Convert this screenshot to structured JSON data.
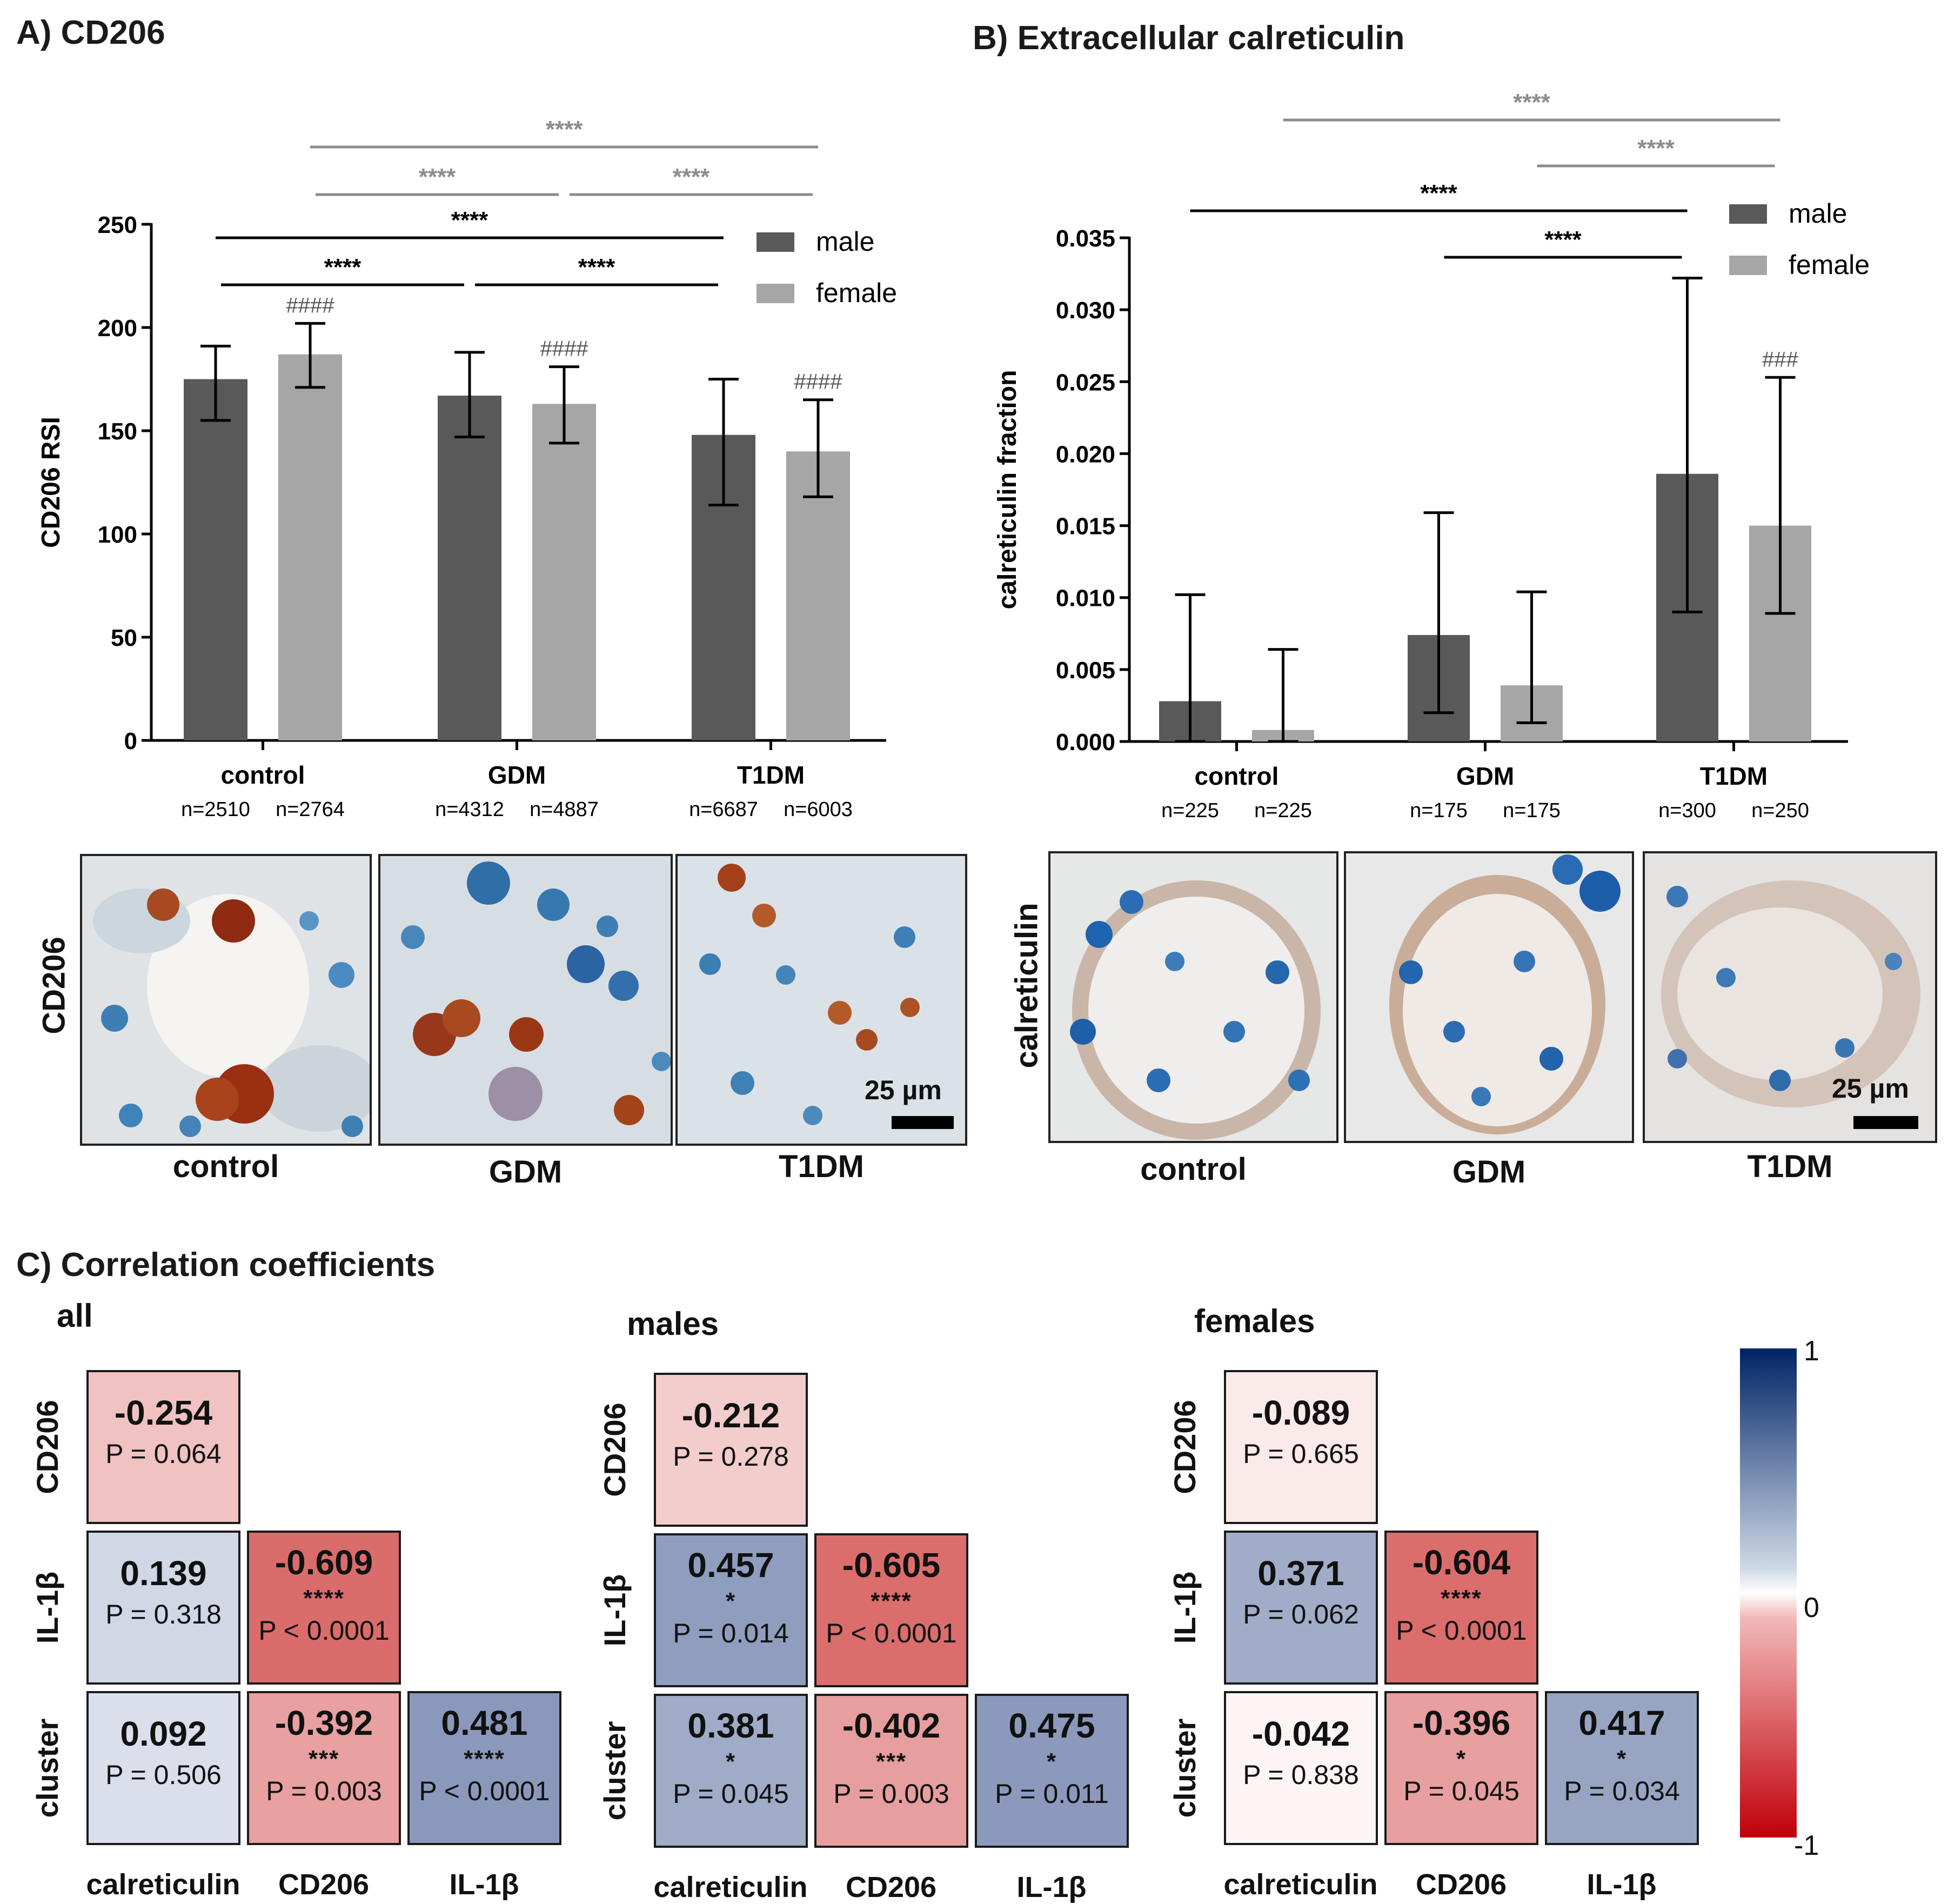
{
  "panel_a": {
    "title": "A) CD206",
    "images": [
      {
        "label": "control"
      },
      {
        "label": "GDM"
      },
      {
        "label": "T1DM"
      }
    ],
    "side_label": "CD206",
    "scale_label": "25 µm"
  },
  "panel_b": {
    "title": "B) Extracellular calreticulin",
    "images": [
      {
        "label": "control"
      },
      {
        "label": "GDM"
      },
      {
        "label": "T1DM"
      }
    ],
    "side_label": "calreticulin",
    "scale_label": "25 µm"
  },
  "panel_c": {
    "title": "C) Correlation coefficients",
    "groups": [
      {
        "subtitle": "all",
        "row_labels": [
          "CD206",
          "IL-1β",
          "cluster"
        ],
        "col_labels": [
          "calreticulin",
          "CD206",
          "IL-1β"
        ],
        "cells": [
          {
            "row": 0,
            "col": 0,
            "r": "-0.254",
            "stars": "",
            "p": "P = 0.064",
            "value": -0.254
          },
          {
            "row": 1,
            "col": 0,
            "r": "0.139",
            "stars": "",
            "p": "P = 0.318",
            "value": 0.139
          },
          {
            "row": 1,
            "col": 1,
            "r": "-0.609",
            "stars": "****",
            "p": "P < 0.0001",
            "value": -0.609
          },
          {
            "row": 2,
            "col": 0,
            "r": "0.092",
            "stars": "",
            "p": "P = 0.506",
            "value": 0.092
          },
          {
            "row": 2,
            "col": 1,
            "r": "-0.392",
            "stars": "***",
            "p": "P = 0.003",
            "value": -0.392
          },
          {
            "row": 2,
            "col": 2,
            "r": "0.481",
            "stars": "****",
            "p": "P < 0.0001",
            "value": 0.481
          }
        ]
      },
      {
        "subtitle": "males",
        "row_labels": [
          "CD206",
          "IL-1β",
          "cluster"
        ],
        "col_labels": [
          "calreticulin",
          "CD206",
          "IL-1β"
        ],
        "cells": [
          {
            "row": 0,
            "col": 0,
            "r": "-0.212",
            "stars": "",
            "p": "P = 0.278",
            "value": -0.212
          },
          {
            "row": 1,
            "col": 0,
            "r": "0.457",
            "stars": "*",
            "p": "P = 0.014",
            "value": 0.457
          },
          {
            "row": 1,
            "col": 1,
            "r": "-0.605",
            "stars": "****",
            "p": "P < 0.0001",
            "value": -0.605
          },
          {
            "row": 2,
            "col": 0,
            "r": "0.381",
            "stars": "*",
            "p": "P = 0.045",
            "value": 0.381
          },
          {
            "row": 2,
            "col": 1,
            "r": "-0.402",
            "stars": "***",
            "p": "P = 0.003",
            "value": -0.402
          },
          {
            "row": 2,
            "col": 2,
            "r": "0.475",
            "stars": "*",
            "p": "P = 0.011",
            "value": 0.475
          }
        ]
      },
      {
        "subtitle": "females",
        "row_labels": [
          "CD206",
          "IL-1β",
          "cluster"
        ],
        "col_labels": [
          "calreticulin",
          "CD206",
          "IL-1β"
        ],
        "cells": [
          {
            "row": 0,
            "col": 0,
            "r": "-0.089",
            "stars": "",
            "p": "P = 0.665",
            "value": -0.089
          },
          {
            "row": 1,
            "col": 0,
            "r": "0.371",
            "stars": "",
            "p": "P = 0.062",
            "value": 0.371
          },
          {
            "row": 1,
            "col": 1,
            "r": "-0.604",
            "stars": "****",
            "p": "P < 0.0001",
            "value": -0.604
          },
          {
            "row": 2,
            "col": 0,
            "r": "-0.042",
            "stars": "",
            "p": "P = 0.838",
            "value": -0.042
          },
          {
            "row": 2,
            "col": 1,
            "r": "-0.396",
            "stars": "*",
            "p": "P = 0.045",
            "value": -0.396
          },
          {
            "row": 2,
            "col": 2,
            "r": "0.417",
            "stars": "*",
            "p": "P = 0.034",
            "value": 0.417
          }
        ]
      }
    ],
    "colorbar": {
      "max_label": "1",
      "mid_label": "0",
      "min_label": "-1"
    }
  },
  "colors": {
    "male": "#595959",
    "female": "#a6a6a6",
    "sig_dark": "#000000",
    "sig_light": "#8c8c8c",
    "neg": "#c0000a",
    "pos": "#002366"
  },
  "chart_data": [
    {
      "type": "bar",
      "title": "A) CD206",
      "ylabel": "CD206 RSI",
      "xlabel": "",
      "ylim": [
        0,
        250
      ],
      "yticks": [
        0,
        50,
        100,
        150,
        200,
        250
      ],
      "categories": [
        "control",
        "GDM",
        "T1DM"
      ],
      "series": [
        {
          "name": "male",
          "values": [
            175,
            167,
            148
          ],
          "error_low": [
            155,
            147,
            114
          ],
          "error_high": [
            191,
            188,
            175
          ],
          "n_labels": [
            "n=2510",
            "n=4312",
            "n=6687"
          ]
        },
        {
          "name": "female",
          "values": [
            187,
            163,
            140
          ],
          "error_low": [
            171,
            144,
            118
          ],
          "error_high": [
            202,
            181,
            165
          ],
          "n_labels": [
            "n=2764",
            "n=4887",
            "n=6003"
          ]
        }
      ],
      "hash_marks": [
        {
          "category": 0,
          "series": 1,
          "text": "####"
        },
        {
          "category": 1,
          "series": 1,
          "text": "####"
        },
        {
          "category": 2,
          "series": 1,
          "text": "####"
        }
      ],
      "significance": [
        {
          "from": {
            "category": 0,
            "series": 0
          },
          "to": {
            "category": 1,
            "series": 0
          },
          "text": "****",
          "level": 1,
          "tone": "dark"
        },
        {
          "from": {
            "category": 1,
            "series": 0
          },
          "to": {
            "category": 2,
            "series": 0
          },
          "text": "****",
          "level": 1,
          "tone": "dark"
        },
        {
          "from": {
            "category": 0,
            "series": 0
          },
          "to": {
            "category": 2,
            "series": 0
          },
          "text": "****",
          "level": 2,
          "tone": "dark"
        },
        {
          "from": {
            "category": 0,
            "series": 1
          },
          "to": {
            "category": 1,
            "series": 1
          },
          "text": "****",
          "level": 3,
          "tone": "light"
        },
        {
          "from": {
            "category": 1,
            "series": 1
          },
          "to": {
            "category": 2,
            "series": 1
          },
          "text": "****",
          "level": 3,
          "tone": "light"
        },
        {
          "from": {
            "category": 0,
            "series": 1
          },
          "to": {
            "category": 2,
            "series": 1
          },
          "text": "****",
          "level": 4,
          "tone": "light"
        }
      ],
      "legend": [
        "male",
        "female"
      ],
      "legend_position": "top-right"
    },
    {
      "type": "bar",
      "title": "B) Extracellular calreticulin",
      "ylabel": "calreticulin fraction",
      "xlabel": "",
      "ylim": [
        0,
        0.035
      ],
      "yticks": [
        0.0,
        0.005,
        0.01,
        0.015,
        0.02,
        0.025,
        0.03,
        0.035
      ],
      "ytick_labels": [
        "0.000",
        "0.005",
        "0.010",
        "0.015",
        "0.020",
        "0.025",
        "0.030",
        "0.035"
      ],
      "categories": [
        "control",
        "GDM",
        "T1DM"
      ],
      "series": [
        {
          "name": "male",
          "values": [
            0.0028,
            0.0074,
            0.0186
          ],
          "error_low": [
            0.0,
            0.002,
            0.009
          ],
          "error_high": [
            0.0102,
            0.0159,
            0.0322
          ],
          "n_labels": [
            "n=225",
            "n=175",
            "n=300"
          ]
        },
        {
          "name": "female",
          "values": [
            0.0008,
            0.0039,
            0.015
          ],
          "error_low": [
            0.0,
            0.0013,
            0.0089
          ],
          "error_high": [
            0.0064,
            0.0104,
            0.0253
          ],
          "n_labels": [
            "n=225",
            "n=175",
            "n=250"
          ]
        }
      ],
      "hash_marks": [
        {
          "category": 2,
          "series": 1,
          "text": "###"
        }
      ],
      "significance": [
        {
          "from": {
            "category": 1,
            "series": 0
          },
          "to": {
            "category": 2,
            "series": 0
          },
          "text": "****",
          "level": 1,
          "tone": "dark"
        },
        {
          "from": {
            "category": 0,
            "series": 0
          },
          "to": {
            "category": 2,
            "series": 0
          },
          "text": "****",
          "level": 2,
          "tone": "dark"
        },
        {
          "from": {
            "category": 1,
            "series": 1
          },
          "to": {
            "category": 2,
            "series": 1
          },
          "text": "****",
          "level": 3,
          "tone": "light"
        },
        {
          "from": {
            "category": 0,
            "series": 1
          },
          "to": {
            "category": 2,
            "series": 1
          },
          "text": "****",
          "level": 4,
          "tone": "light"
        }
      ],
      "legend": [
        "male",
        "female"
      ],
      "legend_position": "top-right"
    }
  ]
}
